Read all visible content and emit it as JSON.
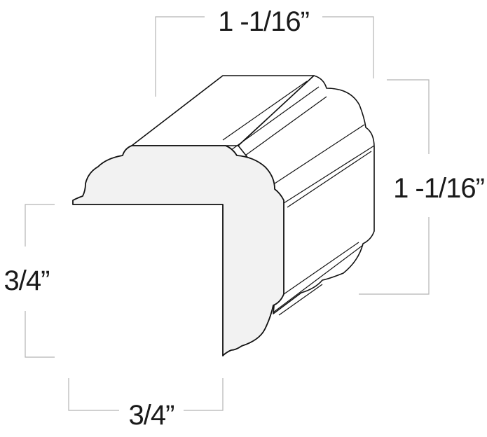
{
  "dimensions": {
    "top_width": "1 -1/16”",
    "right_height": "1 -1/16”",
    "left_height": "3/4”",
    "bottom_width": "3/4”"
  }
}
